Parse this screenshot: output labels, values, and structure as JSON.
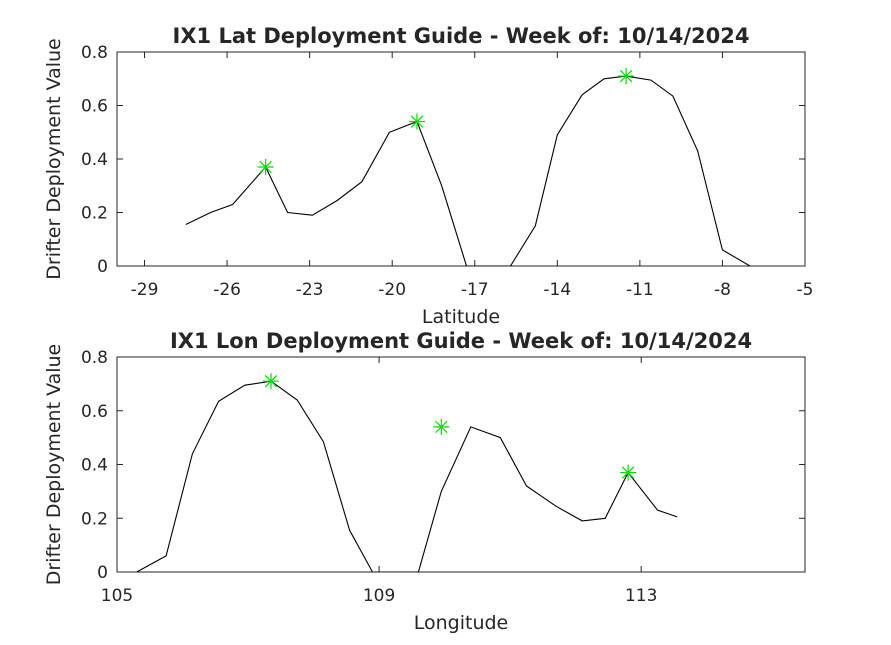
{
  "chart_data": [
    {
      "type": "line",
      "title": "IX1 Lat Deployment Guide - Week of: 10/14/2024",
      "xlabel": "Latitude",
      "ylabel": "Drifter Deployment Value",
      "xlim": [
        -30,
        -5
      ],
      "ylim": [
        0,
        0.8
      ],
      "xticks": [
        -29,
        -26,
        -23,
        -20,
        -17,
        -14,
        -11,
        -8,
        -5
      ],
      "xtick_labels": [
        "-29",
        "-26",
        "-23",
        "-20",
        "-17",
        "-14",
        "-11",
        "-8",
        "-5"
      ],
      "yticks": [
        0,
        0.2,
        0.4,
        0.6,
        0.8
      ],
      "ytick_labels": [
        "0",
        "0.2",
        "0.4",
        "0.6",
        "0.8"
      ],
      "grid": true,
      "series": [
        {
          "color": "#000000",
          "x": [
            -27.5,
            -26.6,
            -25.8,
            -24.6,
            -23.8,
            -22.9,
            -22.0,
            -21.1,
            -20.1,
            -19.1,
            -18.2,
            -17.3,
            -16.9,
            -15.7,
            -14.8,
            -14.0,
            -13.1,
            -12.3,
            -11.5,
            -10.6,
            -9.8,
            -8.9,
            -8.0,
            -7.0
          ],
          "y": [
            0.155,
            0.2,
            0.23,
            0.37,
            0.2,
            0.19,
            0.245,
            0.315,
            0.5,
            0.54,
            0.3,
            0.0,
            0.0,
            0.0,
            0.15,
            0.49,
            0.64,
            0.7,
            0.71,
            0.695,
            0.635,
            0.43,
            0.06,
            0.0
          ]
        }
      ],
      "markers": [
        {
          "x": -24.6,
          "y": 0.37,
          "color": "#00dd00",
          "symbol": "asterisk"
        },
        {
          "x": -19.1,
          "y": 0.54,
          "color": "#00dd00",
          "symbol": "asterisk"
        },
        {
          "x": -11.5,
          "y": 0.71,
          "color": "#00dd00",
          "symbol": "asterisk"
        }
      ]
    },
    {
      "type": "line",
      "title": "IX1 Lon Deployment Guide - Week of: 10/14/2024",
      "xlabel": "Longitude",
      "ylabel": "Drifter Deployment Value",
      "xlim": [
        105,
        115.5
      ],
      "ylim": [
        0,
        0.8
      ],
      "xticks": [
        105,
        109,
        113
      ],
      "xtick_labels": [
        "105",
        "109",
        "113"
      ],
      "yticks": [
        0,
        0.2,
        0.4,
        0.6,
        0.8
      ],
      "ytick_labels": [
        "0",
        "0.2",
        "0.4",
        "0.6",
        "0.8"
      ],
      "grid": true,
      "series": [
        {
          "color": "#000000",
          "x": [
            105.3,
            105.75,
            106.15,
            106.55,
            106.95,
            107.35,
            107.75,
            108.15,
            108.55,
            108.9,
            109.25,
            109.6,
            109.95,
            110.4,
            110.85,
            111.25,
            111.7,
            112.1,
            112.45,
            112.8,
            113.25,
            113.55
          ],
          "y": [
            0.0,
            0.06,
            0.44,
            0.635,
            0.695,
            0.71,
            0.64,
            0.485,
            0.155,
            0.0,
            0.0,
            0.0,
            0.3,
            0.54,
            0.5,
            0.32,
            0.245,
            0.19,
            0.2,
            0.37,
            0.23,
            0.205
          ]
        }
      ],
      "markers": [
        {
          "x": 107.35,
          "y": 0.71,
          "color": "#00dd00",
          "symbol": "asterisk"
        },
        {
          "x": 109.95,
          "y": 0.54,
          "color": "#00dd00",
          "symbol": "asterisk"
        },
        {
          "x": 112.8,
          "y": 0.37,
          "color": "#00dd00",
          "symbol": "asterisk"
        }
      ]
    }
  ]
}
